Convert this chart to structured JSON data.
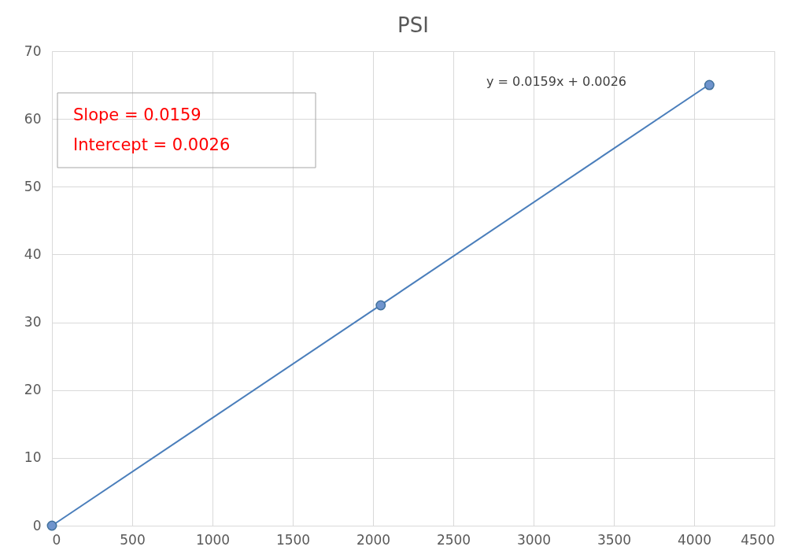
{
  "chart_data": {
    "type": "scatter",
    "title": "PSI",
    "x": [
      0,
      2048,
      4095
    ],
    "series": [
      {
        "color": "#6f94cd",
        "values": [
          0,
          32.5,
          65
        ],
        "marker": "circle"
      },
      {
        "type": "line",
        "color": "#4a7ebb",
        "x": [
          0,
          4095
        ],
        "values": [
          0,
          65.1
        ],
        "marker": "none",
        "line_style": "solid"
      }
    ],
    "xlim": [
      0,
      4500
    ],
    "xticks": [
      0,
      500,
      1000,
      1500,
      2000,
      2500,
      3000,
      3500,
      4000,
      4500
    ],
    "ylim": [
      0,
      70
    ],
    "yticks": [
      0,
      10,
      20,
      30,
      40,
      50,
      60,
      70
    ],
    "grid": true,
    "annotations": [
      "y = 0.0159x + 0.0026",
      "Slope = 0.0159\nIntercept = 0.0026"
    ]
  }
}
